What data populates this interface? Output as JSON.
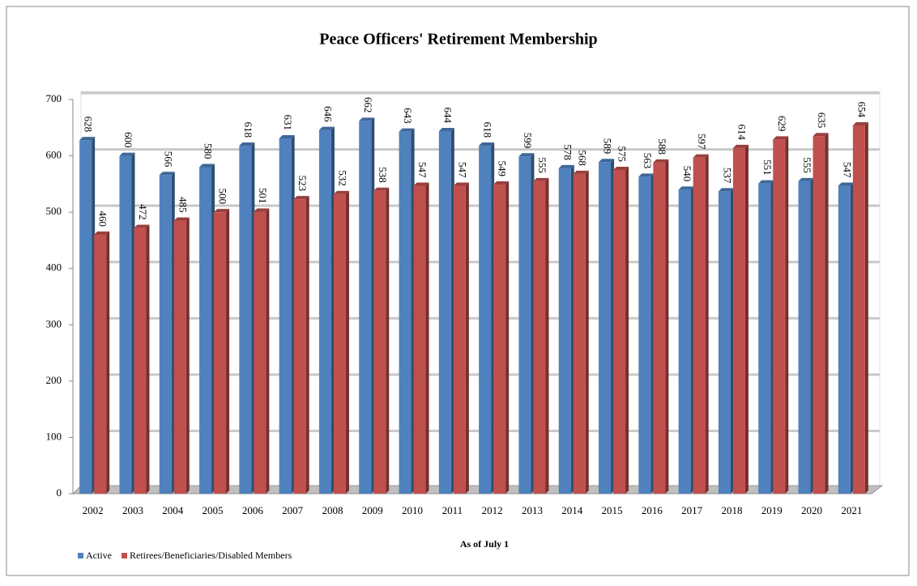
{
  "chart_data": {
    "type": "bar",
    "title": "Peace Officers' Retirement Membership",
    "x_label": "As of July 1",
    "categories": [
      "2002",
      "2003",
      "2004",
      "2005",
      "2006",
      "2007",
      "2008",
      "2009",
      "2010",
      "2011",
      "2012",
      "2013",
      "2014",
      "2015",
      "2016",
      "2017",
      "2018",
      "2019",
      "2020",
      "2021"
    ],
    "series": [
      {
        "name": "Active",
        "color": "#4f81bd",
        "values": [
          628,
          600,
          566,
          580,
          618,
          631,
          646,
          662,
          643,
          644,
          618,
          599,
          578,
          589,
          563,
          540,
          537,
          551,
          555,
          547
        ]
      },
      {
        "name": "Retirees/Beneficiaries/Disabled Members",
        "color": "#c0504d",
        "values": [
          460,
          472,
          485,
          500,
          501,
          523,
          532,
          538,
          547,
          547,
          549,
          555,
          568,
          575,
          588,
          597,
          614,
          629,
          635,
          654
        ]
      }
    ],
    "ylim": [
      0,
      700
    ],
    "yticks": [
      0,
      100,
      200,
      300,
      400,
      500,
      600,
      700
    ],
    "grid": true,
    "legend": "bottom-left"
  }
}
